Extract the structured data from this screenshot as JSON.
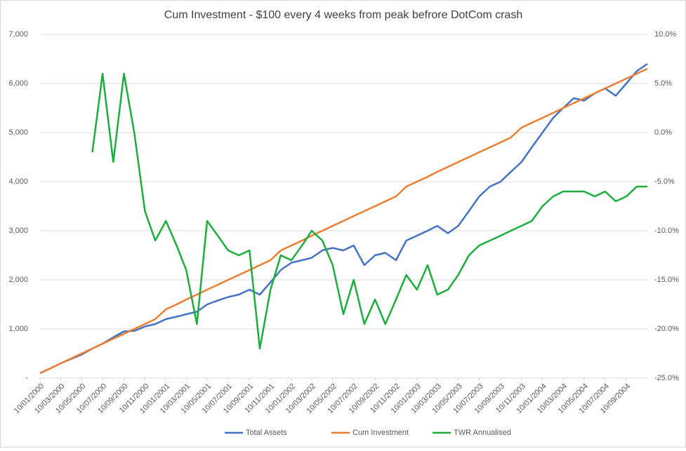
{
  "chart_data": {
    "type": "line",
    "title": "Cum Investment - $100 every 4 weeks from peak befrore DotCom crash",
    "x": [
      "2000-01-10",
      "2000-02-10",
      "2000-03-10",
      "2000-04-10",
      "2000-05-10",
      "2000-06-10",
      "2000-07-10",
      "2000-08-10",
      "2000-09-10",
      "2000-10-10",
      "2000-11-10",
      "2000-12-10",
      "2001-01-10",
      "2001-02-10",
      "2001-03-10",
      "2001-04-10",
      "2001-05-10",
      "2001-06-10",
      "2001-07-10",
      "2001-08-10",
      "2001-09-10",
      "2001-10-10",
      "2001-11-10",
      "2001-12-10",
      "2002-01-10",
      "2002-02-10",
      "2002-03-10",
      "2002-04-10",
      "2002-05-10",
      "2002-06-10",
      "2002-07-10",
      "2002-08-10",
      "2002-09-10",
      "2002-10-10",
      "2002-11-10",
      "2002-12-10",
      "2003-01-10",
      "2003-02-10",
      "2003-03-10",
      "2003-04-10",
      "2003-05-10",
      "2003-06-10",
      "2003-07-10",
      "2003-08-10",
      "2003-09-10",
      "2003-10-10",
      "2003-11-10",
      "2003-12-10",
      "2004-01-10",
      "2004-02-10",
      "2004-03-10",
      "2004-04-10",
      "2004-05-10",
      "2004-06-10",
      "2004-07-10",
      "2004-08-10",
      "2004-09-10",
      "2004-10-10",
      "2004-11-10"
    ],
    "series": [
      {
        "name": "Total Assets",
        "color": "#4472c4",
        "values": [
          100,
          200,
          300,
          390,
          480,
          600,
          700,
          830,
          950,
          960,
          1050,
          1100,
          1200,
          1250,
          1300,
          1350,
          1500,
          1580,
          1650,
          1700,
          1800,
          1700,
          1950,
          2200,
          2350,
          2400,
          2450,
          2600,
          2650,
          2600,
          2700,
          2300,
          2500,
          2550,
          2400,
          2800,
          2900,
          3000,
          3100,
          2950,
          3100,
          3400,
          3700,
          3900,
          4000,
          4200,
          4400,
          4700,
          5000,
          5300,
          5500,
          5700,
          5650,
          5800,
          5900,
          5750,
          6000,
          6250,
          6400
        ]
      },
      {
        "name": "Cum Investment",
        "color": "#ed7d31",
        "values": [
          100,
          200,
          300,
          400,
          500,
          600,
          700,
          800,
          900,
          1000,
          1100,
          1200,
          1400,
          1500,
          1600,
          1700,
          1800,
          1900,
          2000,
          2100,
          2200,
          2300,
          2400,
          2600,
          2700,
          2800,
          2900,
          3000,
          3100,
          3200,
          3300,
          3400,
          3500,
          3600,
          3700,
          3900,
          4000,
          4100,
          4200,
          4300,
          4400,
          4500,
          4600,
          4700,
          4800,
          4900,
          5100,
          5200,
          5300,
          5400,
          5500,
          5600,
          5700,
          5800,
          5900,
          6000,
          6100,
          6200,
          6300
        ]
      },
      {
        "name": "TWR Annualised",
        "color": "#1aaf3c",
        "axis": "y2",
        "values": [
          null,
          null,
          null,
          null,
          null,
          -2,
          6,
          -3,
          6,
          0,
          -8,
          -11,
          -9,
          -11.5,
          -14,
          -19.5,
          -9,
          -10.5,
          -12,
          -12.5,
          -12,
          -22,
          -16,
          -12.5,
          -13,
          -11.5,
          -10,
          -11,
          -13.5,
          -18.5,
          -15,
          -19.5,
          -17,
          -19.5,
          -17,
          -14.5,
          -16,
          -13.5,
          -16.5,
          -16,
          -14.5,
          -12.5,
          -11.5,
          -11,
          -10.5,
          -10,
          -9.5,
          -9,
          -7.5,
          -6.5,
          -6,
          -6,
          -6,
          -6.5,
          -6,
          -7,
          -6.5,
          -5.5,
          -5.5
        ]
      }
    ],
    "xlim": [
      "2000-01-10",
      "2004-11-10"
    ],
    "xticks": [
      {
        "value": "2000-01-10",
        "label": "10/01/2000"
      },
      {
        "value": "2000-03-10",
        "label": "10/03/2000"
      },
      {
        "value": "2000-05-10",
        "label": "10/05/2000"
      },
      {
        "value": "2000-07-10",
        "label": "10/07/2000"
      },
      {
        "value": "2000-09-10",
        "label": "10/09/2000"
      },
      {
        "value": "2000-11-10",
        "label": "10/11/2000"
      },
      {
        "value": "2001-01-10",
        "label": "10/01/2001"
      },
      {
        "value": "2001-03-10",
        "label": "10/03/2001"
      },
      {
        "value": "2001-05-10",
        "label": "10/05/2001"
      },
      {
        "value": "2001-07-10",
        "label": "10/07/2001"
      },
      {
        "value": "2001-09-10",
        "label": "10/09/2001"
      },
      {
        "value": "2001-11-10",
        "label": "10/11/2001"
      },
      {
        "value": "2002-01-10",
        "label": "10/01/2002"
      },
      {
        "value": "2002-03-10",
        "label": "10/03/2002"
      },
      {
        "value": "2002-05-10",
        "label": "10/05/2002"
      },
      {
        "value": "2002-07-10",
        "label": "10/07/2002"
      },
      {
        "value": "2002-09-10",
        "label": "10/09/2002"
      },
      {
        "value": "2002-11-10",
        "label": "10/11/2002"
      },
      {
        "value": "2003-01-10",
        "label": "10/01/2003"
      },
      {
        "value": "2003-03-10",
        "label": "10/03/2003"
      },
      {
        "value": "2003-05-10",
        "label": "10/05/2003"
      },
      {
        "value": "2003-07-10",
        "label": "10/07/2003"
      },
      {
        "value": "2003-09-10",
        "label": "10/09/2003"
      },
      {
        "value": "2003-11-10",
        "label": "10/11/2003"
      },
      {
        "value": "2004-01-10",
        "label": "10/01/2004"
      },
      {
        "value": "2004-03-10",
        "label": "10/03/2004"
      },
      {
        "value": "2004-05-10",
        "label": "10/05/2004"
      },
      {
        "value": "2004-07-10",
        "label": "10/07/2004"
      },
      {
        "value": "2004-09-10",
        "label": "10/09/2004"
      }
    ],
    "ylim": [
      0,
      7000
    ],
    "yticks": [
      {
        "value": 0,
        "label": "-"
      },
      {
        "value": 1000,
        "label": "1,000"
      },
      {
        "value": 2000,
        "label": "2,000"
      },
      {
        "value": 3000,
        "label": "3,000"
      },
      {
        "value": 4000,
        "label": "4,000"
      },
      {
        "value": 5000,
        "label": "5,000"
      },
      {
        "value": 6000,
        "label": "6,000"
      },
      {
        "value": 7000,
        "label": "7,000"
      }
    ],
    "y2lim": [
      -25,
      10
    ],
    "y2ticks": [
      {
        "value": -25,
        "label": "-25.0%"
      },
      {
        "value": -20,
        "label": "-20.0%"
      },
      {
        "value": -15,
        "label": "-15.0%"
      },
      {
        "value": -10,
        "label": "-10.0%"
      },
      {
        "value": -5,
        "label": "-5.0%"
      },
      {
        "value": 0,
        "label": "0.0%"
      },
      {
        "value": 5,
        "label": "5.0%"
      },
      {
        "value": 10,
        "label": "10.0%"
      }
    ],
    "grid": true,
    "legend": "bottom"
  }
}
